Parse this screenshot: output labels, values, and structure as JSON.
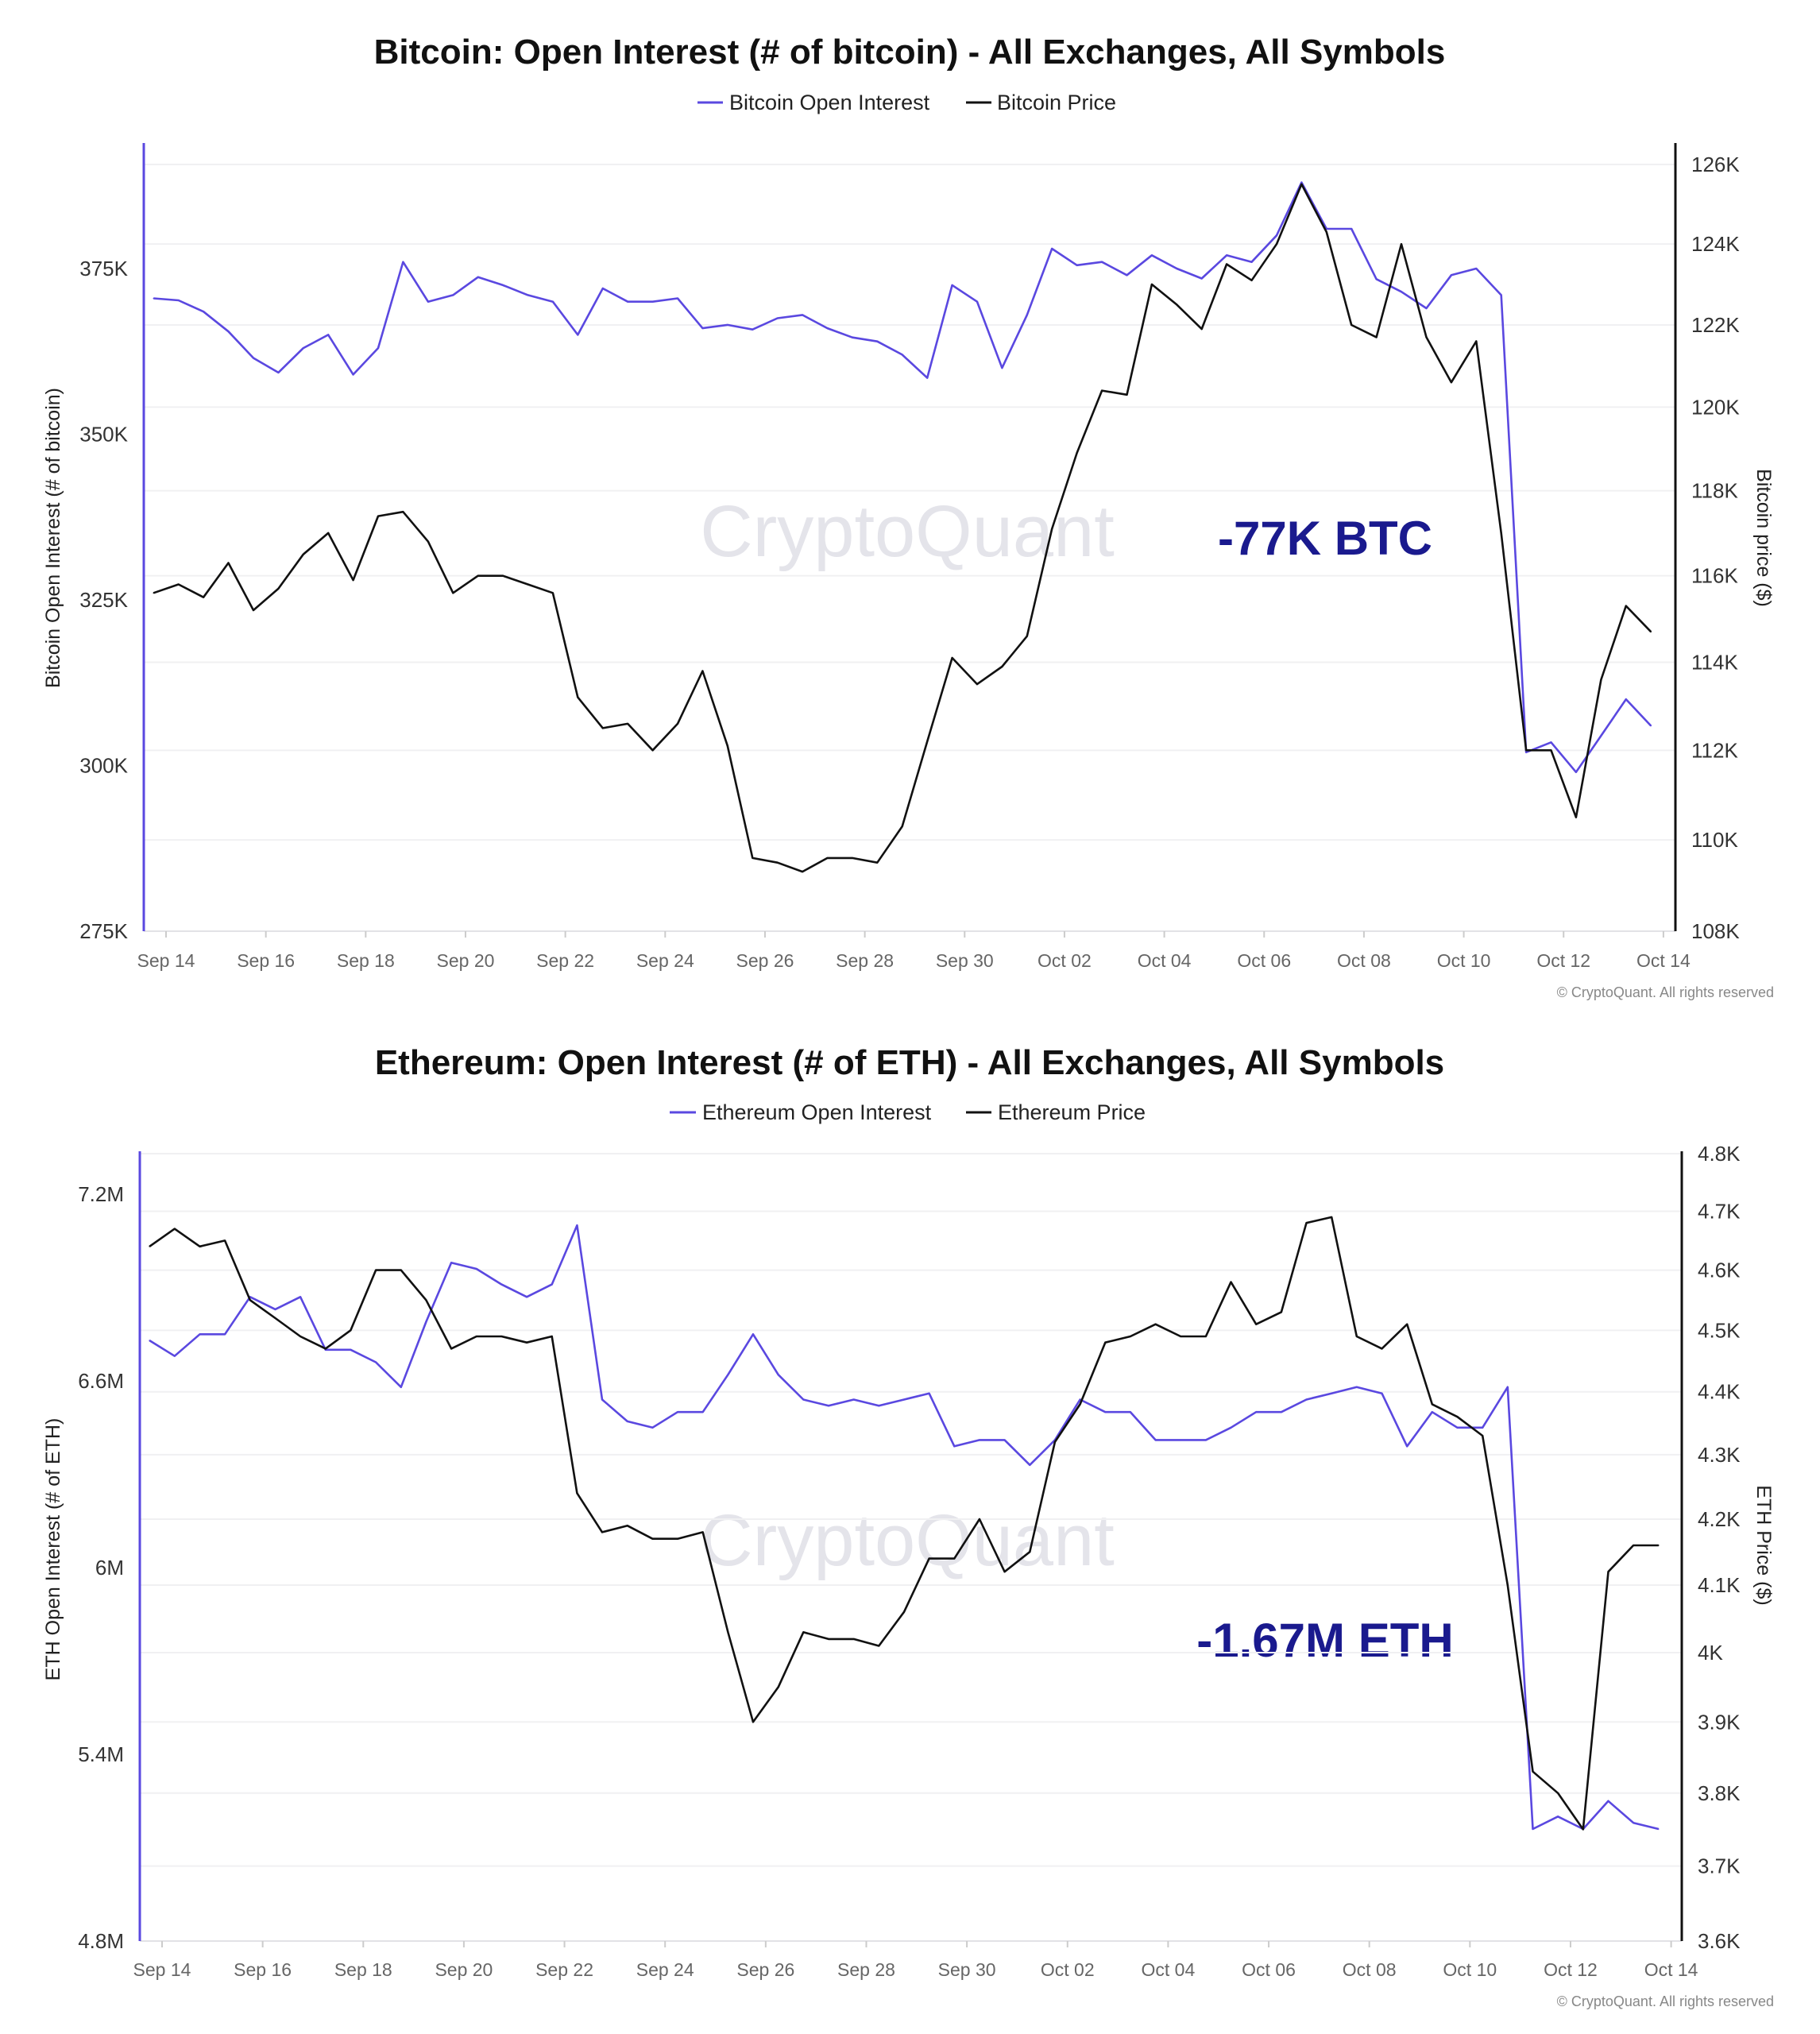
{
  "colors": {
    "open_interest": "#5a48e0",
    "price": "#111111",
    "annotation": "#1a1a8e",
    "grid": "#f0f0f2",
    "watermark": "#e4e4ea"
  },
  "watermark": "CryptoQuant",
  "copyright": "© CryptoQuant. All rights reserved",
  "chart_data": [
    {
      "type": "line",
      "title": "Bitcoin: Open Interest (# of bitcoin) - All Exchanges, All Symbols",
      "legend_placement": "top-center",
      "grid": true,
      "ylabel_left": "Bitcoin Open Interest (# of bitcoin)",
      "ylabel_right": "Bitcoin price ($)",
      "annotation": "-77K BTC",
      "x_ticks": [
        "Sep 14",
        "Sep 16",
        "Sep 18",
        "Sep 20",
        "Sep 22",
        "Sep 24",
        "Sep 26",
        "Sep 28",
        "Sep 30",
        "Oct 02",
        "Oct 04",
        "Oct 06",
        "Oct 08",
        "Oct 10",
        "Oct 12",
        "Oct 14"
      ],
      "y_left": {
        "scale": "linear",
        "range": [
          275000,
          394000
        ],
        "ticks": [
          {
            "label": "375K",
            "value": 375000
          },
          {
            "label": "350K",
            "value": 350000
          },
          {
            "label": "325K",
            "value": 325000
          },
          {
            "label": "300K",
            "value": 300000
          },
          {
            "label": "275K",
            "value": 275000
          }
        ]
      },
      "y_right": {
        "scale": "log",
        "range": [
          108000,
          126000
        ],
        "ticks": [
          {
            "label": "126K",
            "value": 126000
          },
          {
            "label": "124K",
            "value": 124000
          },
          {
            "label": "122K",
            "value": 122000
          },
          {
            "label": "120K",
            "value": 120000
          },
          {
            "label": "118K",
            "value": 118000
          },
          {
            "label": "116K",
            "value": 116000
          },
          {
            "label": "114K",
            "value": 114000
          },
          {
            "label": "112K",
            "value": 112000
          },
          {
            "label": "110K",
            "value": 110000
          },
          {
            "label": "108K",
            "value": 108000
          }
        ]
      },
      "x": [
        "Sep 13 18:00",
        "Sep 14 06:00",
        "Sep 14 18:00",
        "Sep 15 06:00",
        "Sep 15 18:00",
        "Sep 16 06:00",
        "Sep 16 18:00",
        "Sep 17 06:00",
        "Sep 17 18:00",
        "Sep 18 06:00",
        "Sep 18 18:00",
        "Sep 19 06:00",
        "Sep 19 18:00",
        "Sep 20 06:00",
        "Sep 20 18:00",
        "Sep 21 06:00",
        "Sep 21 18:00",
        "Sep 22 06:00",
        "Sep 22 18:00",
        "Sep 23 06:00",
        "Sep 23 18:00",
        "Sep 24 06:00",
        "Sep 24 18:00",
        "Sep 25 06:00",
        "Sep 25 18:00",
        "Sep 26 06:00",
        "Sep 26 18:00",
        "Sep 27 06:00",
        "Sep 27 18:00",
        "Sep 28 06:00",
        "Sep 28 18:00",
        "Sep 29 06:00",
        "Sep 29 18:00",
        "Sep 30 06:00",
        "Sep 30 18:00",
        "Oct 01 06:00",
        "Oct 01 18:00",
        "Oct 02 06:00",
        "Oct 02 18:00",
        "Oct 03 06:00",
        "Oct 03 18:00",
        "Oct 04 06:00",
        "Oct 04 18:00",
        "Oct 05 06:00",
        "Oct 05 18:00",
        "Oct 06 06:00",
        "Oct 06 18:00",
        "Oct 07 06:00",
        "Oct 07 18:00",
        "Oct 08 06:00",
        "Oct 08 18:00",
        "Oct 09 06:00",
        "Oct 09 18:00",
        "Oct 10 06:00",
        "Oct 10 18:00",
        "Oct 11 06:00",
        "Oct 11 18:00",
        "Oct 12 06:00",
        "Oct 12 18:00",
        "Oct 13 06:00",
        "Oct 13 18:00"
      ],
      "series": [
        {
          "name": "Bitcoin Open Interest",
          "axis": "left",
          "values": [
            370500,
            370200,
            368500,
            365500,
            361500,
            359300,
            363000,
            365000,
            359000,
            363000,
            376000,
            370000,
            371000,
            373700,
            372500,
            371000,
            370000,
            365000,
            372000,
            370000,
            370000,
            370500,
            366000,
            366500,
            365800,
            367500,
            368000,
            366000,
            364600,
            364000,
            362000,
            358500,
            372500,
            370000,
            360000,
            368000,
            378000,
            375500,
            376000,
            374000,
            377000,
            375000,
            373500,
            377000,
            376000,
            380000,
            388000,
            381000,
            381000,
            373400,
            371500,
            369000,
            374000,
            375000,
            371000,
            302000,
            303500,
            299000,
            304500,
            310000,
            306000
          ]
        },
        {
          "name": "Bitcoin Price",
          "axis": "right",
          "values": [
            115600,
            115800,
            115500,
            116300,
            115200,
            115700,
            116500,
            117000,
            115900,
            117400,
            117500,
            116800,
            115600,
            116000,
            116000,
            115800,
            115600,
            113200,
            112500,
            112600,
            112000,
            112600,
            113800,
            112100,
            109600,
            109500,
            109300,
            109600,
            109600,
            109500,
            110300,
            112200,
            114100,
            113500,
            113900,
            114600,
            117100,
            118900,
            120400,
            120300,
            123000,
            122500,
            121900,
            123500,
            123100,
            124000,
            125500,
            124300,
            122000,
            121700,
            124000,
            121700,
            120600,
            121600,
            117000,
            112000,
            112000,
            110500,
            113600,
            115300,
            114700
          ]
        }
      ]
    },
    {
      "type": "line",
      "title": "Ethereum: Open Interest (# of ETH) - All Exchanges, All Symbols",
      "legend_placement": "top-center",
      "grid": true,
      "ylabel_left": "ETH Open Interest (# of ETH)",
      "ylabel_right": "ETH Price ($)",
      "annotation": "-1.67M ETH",
      "x_ticks": [
        "Sep 14",
        "Sep 16",
        "Sep 18",
        "Sep 20",
        "Sep 22",
        "Sep 24",
        "Sep 26",
        "Sep 28",
        "Sep 30",
        "Oct 02",
        "Oct 04",
        "Oct 06",
        "Oct 08",
        "Oct 10",
        "Oct 12",
        "Oct 14"
      ],
      "y_left": {
        "scale": "linear",
        "range": [
          4800000,
          7420000
        ],
        "ticks": [
          {
            "label": "7.2M",
            "value": 7200000
          },
          {
            "label": "6.6M",
            "value": 6600000
          },
          {
            "label": "6M",
            "value": 6000000
          },
          {
            "label": "5.4M",
            "value": 5400000
          },
          {
            "label": "4.8M",
            "value": 4800000
          }
        ]
      },
      "y_right": {
        "scale": "log",
        "range": [
          3600,
          4800
        ],
        "ticks": [
          {
            "label": "4.8K",
            "value": 4800
          },
          {
            "label": "4.7K",
            "value": 4700
          },
          {
            "label": "4.6K",
            "value": 4600
          },
          {
            "label": "4.5K",
            "value": 4500
          },
          {
            "label": "4.4K",
            "value": 4400
          },
          {
            "label": "4.3K",
            "value": 4300
          },
          {
            "label": "4.2K",
            "value": 4200
          },
          {
            "label": "4.1K",
            "value": 4100
          },
          {
            "label": "4K",
            "value": 4000
          },
          {
            "label": "3.9K",
            "value": 3900
          },
          {
            "label": "3.8K",
            "value": 3800
          },
          {
            "label": "3.7K",
            "value": 3700
          },
          {
            "label": "3.6K",
            "value": 3600
          }
        ]
      },
      "x": [
        "Sep 13 18:00",
        "Sep 14 06:00",
        "Sep 14 18:00",
        "Sep 15 06:00",
        "Sep 15 18:00",
        "Sep 16 06:00",
        "Sep 16 18:00",
        "Sep 17 06:00",
        "Sep 17 18:00",
        "Sep 18 06:00",
        "Sep 18 18:00",
        "Sep 19 06:00",
        "Sep 19 18:00",
        "Sep 20 06:00",
        "Sep 20 18:00",
        "Sep 21 06:00",
        "Sep 21 18:00",
        "Sep 22 06:00",
        "Sep 22 18:00",
        "Sep 23 06:00",
        "Sep 23 18:00",
        "Sep 24 06:00",
        "Sep 24 18:00",
        "Sep 25 06:00",
        "Sep 25 18:00",
        "Sep 26 06:00",
        "Sep 26 18:00",
        "Sep 27 06:00",
        "Sep 27 18:00",
        "Sep 28 06:00",
        "Sep 28 18:00",
        "Sep 29 06:00",
        "Sep 29 18:00",
        "Sep 30 06:00",
        "Sep 30 18:00",
        "Oct 01 06:00",
        "Oct 01 18:00",
        "Oct 02 06:00",
        "Oct 02 18:00",
        "Oct 03 06:00",
        "Oct 03 18:00",
        "Oct 04 06:00",
        "Oct 04 18:00",
        "Oct 05 06:00",
        "Oct 05 18:00",
        "Oct 06 06:00",
        "Oct 06 18:00",
        "Oct 07 06:00",
        "Oct 07 18:00",
        "Oct 08 06:00",
        "Oct 08 18:00",
        "Oct 09 06:00",
        "Oct 09 18:00",
        "Oct 10 06:00",
        "Oct 10 18:00",
        "Oct 11 06:00",
        "Oct 11 18:00",
        "Oct 12 06:00",
        "Oct 12 18:00",
        "Oct 13 06:00",
        "Oct 13 18:00"
      ],
      "series": [
        {
          "name": "Ethereum Open Interest",
          "axis": "left",
          "values": [
            6730000,
            6680000,
            6750000,
            6750000,
            6870000,
            6830000,
            6870000,
            6700000,
            6700000,
            6660000,
            6580000,
            6790000,
            6980000,
            6960000,
            6910000,
            6870000,
            6910000,
            7100000,
            6540000,
            6470000,
            6450000,
            6500000,
            6500000,
            6620000,
            6750000,
            6620000,
            6540000,
            6520000,
            6540000,
            6520000,
            6540000,
            6560000,
            6390000,
            6410000,
            6410000,
            6330000,
            6410000,
            6540000,
            6500000,
            6500000,
            6410000,
            6410000,
            6410000,
            6450000,
            6500000,
            6500000,
            6540000,
            6560000,
            6580000,
            6560000,
            6390000,
            6500000,
            6450000,
            6450000,
            6580000,
            5160000,
            5200000,
            5160000,
            5250000,
            5180000,
            5160000
          ]
        },
        {
          "name": "Ethereum Price",
          "axis": "right",
          "values": [
            4640,
            4670,
            4640,
            4650,
            4550,
            4520,
            4490,
            4470,
            4500,
            4600,
            4600,
            4550,
            4470,
            4490,
            4490,
            4480,
            4490,
            4240,
            4180,
            4190,
            4170,
            4170,
            4180,
            4030,
            3900,
            3950,
            4030,
            4020,
            4020,
            4010,
            4060,
            4140,
            4140,
            4200,
            4120,
            4150,
            4320,
            4380,
            4480,
            4490,
            4510,
            4490,
            4490,
            4580,
            4510,
            4530,
            4680,
            4690,
            4490,
            4470,
            4510,
            4380,
            4360,
            4330,
            4100,
            3830,
            3800,
            3750,
            4120,
            4160,
            4160
          ]
        }
      ]
    }
  ]
}
